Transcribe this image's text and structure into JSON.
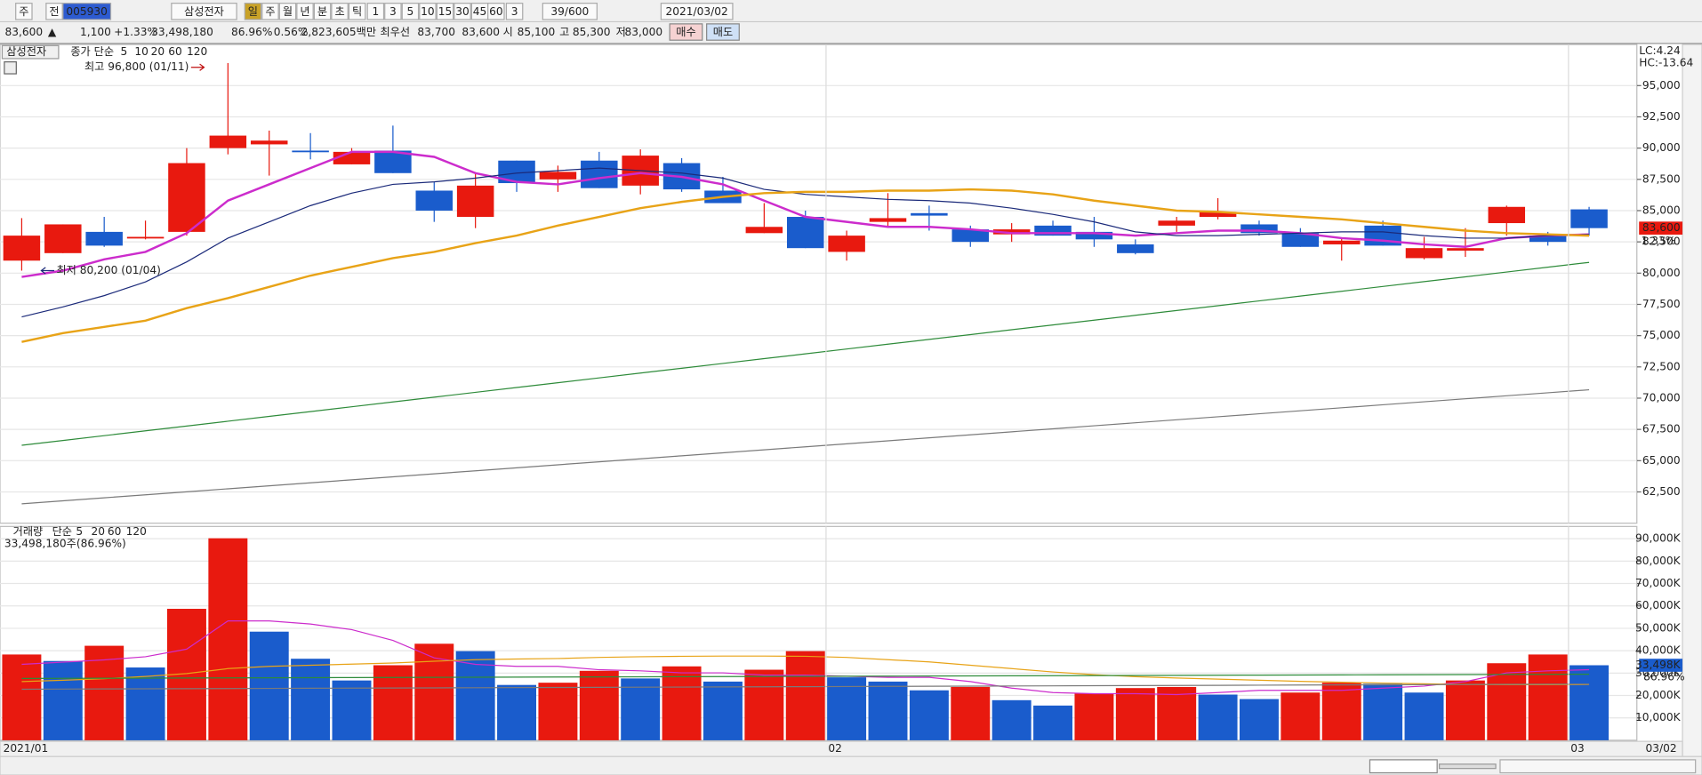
{
  "toolbar": {
    "row1": [
      "주",
      "전",
      "005930",
      "삼성전자",
      "일",
      "주",
      "월",
      "년",
      "분",
      "초",
      "틱",
      "1",
      "3",
      "5",
      "10",
      "15",
      "30",
      "45",
      "60",
      "3",
      "39/600",
      "2021/03/02"
    ],
    "row2": [
      "83,600",
      "▲",
      "1,100",
      "+1.33%",
      "33,498,180",
      "86.96%",
      "0.56%",
      "2,823,605백만",
      "최우선",
      "83,700",
      "83,600",
      "시",
      "85,100",
      "고",
      "85,300",
      "저",
      "83,000",
      "매수",
      "매도"
    ]
  },
  "chart_data": [
    {
      "type": "candlestick",
      "name": "삼성전자",
      "ma_label": "종가 단순",
      "open": [
        81000,
        81600,
        83300,
        82800,
        83300,
        90000,
        90300,
        89800,
        88700,
        89800,
        86600,
        84500,
        89000,
        87500,
        89000,
        87000,
        88800,
        86600,
        83200,
        84500,
        81700,
        84100,
        84800,
        83500,
        83100,
        83800,
        83300,
        82300,
        83800,
        84500,
        83900,
        83200,
        82300,
        83800,
        81200,
        81800,
        84000,
        83000,
        85100
      ],
      "high": [
        84400,
        83900,
        84500,
        84200,
        90000,
        96800,
        91400,
        91200,
        90000,
        91800,
        87300,
        88000,
        89000,
        88600,
        89700,
        89900,
        89200,
        87700,
        85600,
        85000,
        83400,
        86400,
        85400,
        83800,
        84000,
        84200,
        84500,
        82700,
        84500,
        86000,
        84200,
        83600,
        82800,
        84200,
        82900,
        83600,
        85400,
        83300,
        85300
      ],
      "low": [
        80200,
        81600,
        82100,
        82700,
        83000,
        89500,
        87800,
        89100,
        88700,
        88000,
        84100,
        83600,
        86500,
        86500,
        86800,
        86300,
        86500,
        85600,
        83200,
        82000,
        81000,
        83700,
        83400,
        82100,
        82500,
        83000,
        82100,
        81500,
        83300,
        84300,
        83000,
        82100,
        81000,
        82200,
        81100,
        81300,
        83000,
        82200,
        83000
      ],
      "close": [
        83000,
        83900,
        82200,
        82900,
        88800,
        91000,
        90600,
        89700,
        89700,
        88000,
        85000,
        87000,
        87200,
        88100,
        86800,
        89400,
        86700,
        85600,
        83700,
        82000,
        83000,
        84400,
        84600,
        82500,
        83500,
        83000,
        82700,
        81600,
        84200,
        84900,
        83200,
        82100,
        82600,
        82200,
        82000,
        82000,
        85300,
        82500,
        83600
      ],
      "up_color": "#e8190f",
      "down_color": "#1a5ccc",
      "series": [
        {
          "name": "5",
          "color": "#cc2ccc",
          "width": 2,
          "values": [
            79700,
            80200,
            81100,
            81700,
            83200,
            85800,
            87100,
            88400,
            89700,
            89700,
            89300,
            88000,
            87300,
            87100,
            87600,
            88000,
            87700,
            87100,
            85800,
            84500,
            84100,
            83700,
            83700,
            83500,
            83200,
            83200,
            83200,
            83000,
            83200,
            83400,
            83400,
            83200,
            82800,
            82600,
            82300,
            82100,
            82800,
            83000,
            83100
          ]
        },
        {
          "name": "10",
          "color": "#1b2a7a",
          "width": 1,
          "values": [
            76500,
            77300,
            78200,
            79300,
            80900,
            82800,
            84100,
            85400,
            86400,
            87100,
            87300,
            87600,
            88000,
            88200,
            88400,
            88200,
            88000,
            87600,
            86700,
            86300,
            86100,
            85900,
            85800,
            85600,
            85200,
            84700,
            84100,
            83300,
            83000,
            83000,
            83100,
            83200,
            83300,
            83300,
            83000,
            82800,
            82800,
            83000,
            83100
          ]
        },
        {
          "name": "20",
          "color": "#e8a317",
          "width": 2,
          "values": [
            74500,
            75200,
            75700,
            76200,
            77200,
            78000,
            78900,
            79800,
            80500,
            81200,
            81700,
            82400,
            83000,
            83800,
            84500,
            85200,
            85700,
            86100,
            86400,
            86500,
            86500,
            86600,
            86600,
            86700,
            86600,
            86300,
            85800,
            85400,
            85000,
            84900,
            84700,
            84500,
            84300,
            84000,
            83700,
            83400,
            83200,
            83100,
            83000
          ]
        },
        {
          "name": "60",
          "color": "#2e8b3a",
          "width": 1,
          "values": [
            66230,
            66615,
            67000,
            67385,
            67770,
            68155,
            68540,
            68925,
            69310,
            69695,
            70080,
            70465,
            70850,
            71235,
            71620,
            72005,
            72390,
            72775,
            73160,
            73545,
            73930,
            74315,
            74700,
            75085,
            75470,
            75855,
            76240,
            76625,
            77010,
            77395,
            77780,
            78165,
            78550,
            78935,
            79320,
            79705,
            80090,
            80475,
            80860
          ]
        },
        {
          "name": "120",
          "color": "#7a7a7a",
          "width": 1,
          "values": [
            61550,
            61790,
            62030,
            62270,
            62510,
            62750,
            62990,
            63230,
            63470,
            63710,
            63950,
            64190,
            64430,
            64670,
            64910,
            65150,
            65390,
            65630,
            65870,
            66110,
            66350,
            66590,
            66830,
            67070,
            67310,
            67550,
            67790,
            68030,
            68270,
            68510,
            68750,
            68990,
            69230,
            69470,
            69710,
            69950,
            70190,
            70430,
            70670
          ]
        }
      ],
      "ylim": [
        60000,
        98200
      ],
      "yticks": [
        {
          "value": 62500,
          "label": "62,500"
        },
        {
          "value": 65000,
          "label": "65,000"
        },
        {
          "value": 67500,
          "label": "67,500"
        },
        {
          "value": 70000,
          "label": "70,000"
        },
        {
          "value": 72500,
          "label": "72,500"
        },
        {
          "value": 75000,
          "label": "75,000"
        },
        {
          "value": 77500,
          "label": "77,500"
        },
        {
          "value": 80000,
          "label": "80,000"
        },
        {
          "value": 82500,
          "label": "82,500"
        },
        {
          "value": 85000,
          "label": "85,000"
        },
        {
          "value": 87500,
          "label": "87,500"
        },
        {
          "value": 90000,
          "label": "90,000"
        },
        {
          "value": 92500,
          "label": "92,500"
        },
        {
          "value": 95000,
          "label": "95,000"
        }
      ],
      "grid": true,
      "high_label": "최고 96,800 (01/11)",
      "low_label": "최저 80,200 (01/04)",
      "lc_label": "LC:4.24",
      "hc_label": "HC:-13.64",
      "last_price_label": "83,600",
      "change_label": "1.33%"
    },
    {
      "type": "bar",
      "name": "거래량",
      "ma_label": "단순",
      "subtitle": "33,498,180주(86.96%)",
      "categories": [
        "2021/01",
        null,
        null,
        null,
        null,
        null,
        null,
        null,
        null,
        null,
        null,
        null,
        null,
        null,
        null,
        null,
        null,
        null,
        null,
        null,
        "02",
        null,
        null,
        null,
        null,
        null,
        null,
        null,
        null,
        null,
        null,
        null,
        null,
        null,
        null,
        null,
        null,
        null,
        "03"
      ],
      "end_label": "03/02",
      "values": [
        38300,
        35400,
        42200,
        32500,
        58700,
        90200,
        48500,
        36400,
        26700,
        33500,
        43100,
        39800,
        24700,
        25700,
        31000,
        27600,
        33000,
        26200,
        31500,
        39800,
        28100,
        26200,
        22300,
        23800,
        17900,
        15500,
        20800,
        23300,
        23800,
        20400,
        18400,
        21300,
        25700,
        25200,
        21300,
        26700,
        34400,
        38300,
        33498
      ],
      "colors": [
        "#e8190f",
        "#1a5ccc",
        "#e8190f",
        "#1a5ccc",
        "#e8190f",
        "#e8190f",
        "#1a5ccc",
        "#1a5ccc",
        "#1a5ccc",
        "#e8190f",
        "#e8190f",
        "#1a5ccc",
        "#1a5ccc",
        "#e8190f",
        "#e8190f",
        "#1a5ccc",
        "#e8190f",
        "#1a5ccc",
        "#e8190f",
        "#e8190f",
        "#1a5ccc",
        "#1a5ccc",
        "#1a5ccc",
        "#e8190f",
        "#1a5ccc",
        "#1a5ccc",
        "#e8190f",
        "#e8190f",
        "#e8190f",
        "#1a5ccc",
        "#1a5ccc",
        "#e8190f",
        "#e8190f",
        "#1a5ccc",
        "#1a5ccc",
        "#e8190f",
        "#e8190f",
        "#e8190f",
        "#1a5ccc"
      ],
      "series": [
        {
          "name": "5",
          "color": "#cc2ccc",
          "width": 1,
          "values": [
            33900,
            34900,
            35900,
            37300,
            40700,
            53300,
            53300,
            51900,
            49400,
            44600,
            36800,
            33900,
            33000,
            33000,
            31500,
            31000,
            30100,
            30100,
            29100,
            29100,
            28600,
            28100,
            28100,
            26200,
            23300,
            21300,
            20800,
            20800,
            20400,
            21300,
            22300,
            22300,
            22300,
            23300,
            24200,
            26200,
            30100,
            31000,
            31500
          ]
        },
        {
          "name": "20",
          "color": "#e8a317",
          "width": 1,
          "values": [
            26200,
            26800,
            27500,
            28500,
            29800,
            32000,
            33000,
            33500,
            34000,
            34500,
            35300,
            36000,
            36300,
            36500,
            37000,
            37300,
            37500,
            37600,
            37600,
            37500,
            37000,
            36000,
            35000,
            33500,
            32000,
            30500,
            29300,
            28400,
            27800,
            27300,
            26800,
            26300,
            25900,
            25500,
            25200,
            24900,
            24800,
            24800,
            24900
          ]
        },
        {
          "name": "60",
          "color": "#2e8b3a",
          "width": 1,
          "values": [
            27600,
            27650,
            27700,
            27750,
            27800,
            27850,
            27900,
            27950,
            28000,
            28050,
            28100,
            28150,
            28200,
            28250,
            28300,
            28350,
            28400,
            28450,
            28500,
            28550,
            28600,
            28650,
            28700,
            28750,
            28800,
            28850,
            28900,
            28950,
            29000,
            29050,
            29100,
            29150,
            29200,
            29250,
            29300,
            29350,
            29400,
            29450,
            29500
          ]
        },
        {
          "name": "120",
          "color": "#7a7a7a",
          "width": 1,
          "values": [
            22800,
            22860,
            22920,
            22980,
            23040,
            23100,
            23160,
            23220,
            23280,
            23340,
            23400,
            23460,
            23520,
            23580,
            23640,
            23700,
            23760,
            23820,
            23880,
            23940,
            24000,
            24060,
            24120,
            24180,
            24240,
            24300,
            24360,
            24420,
            24480,
            24540,
            24600,
            24660,
            24720,
            24780,
            24840,
            24900,
            24960,
            25020,
            25080
          ]
        }
      ],
      "ylim": [
        0,
        95000
      ],
      "yticks": [
        {
          "value": 10000,
          "label": "10,000K"
        },
        {
          "value": 20000,
          "label": "20,000K"
        },
        {
          "value": 30000,
          "label": "30,000K"
        },
        {
          "value": 40000,
          "label": "40,000K"
        },
        {
          "value": 50000,
          "label": "50,000K"
        },
        {
          "value": 60000,
          "label": "60,000K"
        },
        {
          "value": 70000,
          "label": "70,000K"
        },
        {
          "value": 80000,
          "label": "80,000K"
        },
        {
          "value": 90000,
          "label": "90,000K"
        }
      ],
      "grid": true,
      "last_value_label": "33,498K",
      "ratio_label": "86.96%"
    }
  ]
}
